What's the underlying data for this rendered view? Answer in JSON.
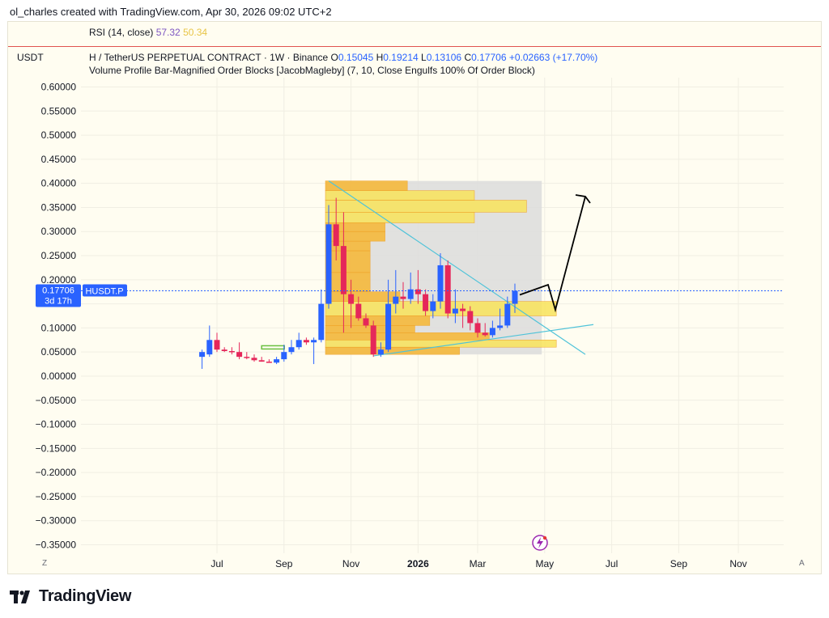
{
  "header": {
    "text": "ol_charles created with TradingView.com, Apr 30, 2026 09:02 UTC+2"
  },
  "rsi": {
    "label": "RSI (14, close)",
    "value1": "57.32",
    "value2": "50.34",
    "color1": "#7e57c2",
    "color2": "#e8c547"
  },
  "legend": {
    "currency": "USDT",
    "symbol": "H / TetherUS PERPETUAL CONTRACT · 1W · Binance",
    "o_label": "O",
    "o_value": "0.15045",
    "h_label": "H",
    "h_value": "0.19214",
    "l_label": "L",
    "l_value": "0.13106",
    "c_label": "C",
    "c_value": "0.17706",
    "change": "+0.02663 (+17.70%)",
    "indicator": "Volume Profile Bar-Magnified Order Blocks [JacobMagleby] (7, 10, Close Engulfs 100% Of Order Block)"
  },
  "price_tag": {
    "price": "0.17706",
    "countdown": "3d 17h",
    "symbol_label": "HUSDT.P",
    "color": "#2962ff"
  },
  "bottom": {
    "left_icon": "Z",
    "right_icon": "A"
  },
  "brand": {
    "name": "TradingView"
  },
  "colors": {
    "up": "#2962ff",
    "down": "#e5275a",
    "bg": "#fffdf1",
    "box": "#dcdcdc",
    "vp_orange": "#f7b733",
    "vp_yellow": "#f9e45b",
    "trendline": "#4fc3d9"
  },
  "chart_data": {
    "type": "candlestick",
    "y_ticks": [
      "0.60000",
      "0.55000",
      "0.50000",
      "0.45000",
      "0.40000",
      "0.35000",
      "0.30000",
      "0.25000",
      "0.20000",
      "0.15000",
      "0.10000",
      "0.05000",
      "0.00000",
      "−0.05000",
      "−0.10000",
      "−0.15000",
      "−0.20000",
      "−0.25000",
      "−0.30000",
      "−0.35000"
    ],
    "ylim": [
      -0.37,
      0.62
    ],
    "x_ticks": [
      {
        "label": "Jul",
        "week": 0
      },
      {
        "label": "Sep",
        "week": 9
      },
      {
        "label": "Nov",
        "week": 18
      },
      {
        "label": "2026",
        "week": 27,
        "bold": true
      },
      {
        "label": "Mar",
        "week": 35
      },
      {
        "label": "May",
        "week": 44
      },
      {
        "label": "Jul",
        "week": 53
      },
      {
        "label": "Sep",
        "week": 62
      },
      {
        "label": "Nov",
        "week": 70
      }
    ],
    "candles": [
      {
        "w": -2,
        "o": 0.04,
        "h": 0.055,
        "l": 0.015,
        "c": 0.05
      },
      {
        "w": -1,
        "o": 0.045,
        "h": 0.105,
        "l": 0.04,
        "c": 0.075
      },
      {
        "w": 0,
        "o": 0.075,
        "h": 0.09,
        "l": 0.05,
        "c": 0.055
      },
      {
        "w": 1,
        "o": 0.055,
        "h": 0.06,
        "l": 0.05,
        "c": 0.052
      },
      {
        "w": 2,
        "o": 0.052,
        "h": 0.06,
        "l": 0.045,
        "c": 0.05
      },
      {
        "w": 3,
        "o": 0.05,
        "h": 0.07,
        "l": 0.035,
        "c": 0.04
      },
      {
        "w": 4,
        "o": 0.04,
        "h": 0.05,
        "l": 0.035,
        "c": 0.038
      },
      {
        "w": 5,
        "o": 0.038,
        "h": 0.045,
        "l": 0.03,
        "c": 0.033
      },
      {
        "w": 6,
        "o": 0.033,
        "h": 0.04,
        "l": 0.03,
        "c": 0.03
      },
      {
        "w": 7,
        "o": 0.03,
        "h": 0.035,
        "l": 0.028,
        "c": 0.028
      },
      {
        "w": 8,
        "o": 0.028,
        "h": 0.04,
        "l": 0.025,
        "c": 0.035
      },
      {
        "w": 9,
        "o": 0.035,
        "h": 0.065,
        "l": 0.03,
        "c": 0.05
      },
      {
        "w": 10,
        "o": 0.05,
        "h": 0.075,
        "l": 0.045,
        "c": 0.06
      },
      {
        "w": 11,
        "o": 0.06,
        "h": 0.09,
        "l": 0.055,
        "c": 0.075
      },
      {
        "w": 12,
        "o": 0.075,
        "h": 0.08,
        "l": 0.065,
        "c": 0.07
      },
      {
        "w": 13,
        "o": 0.07,
        "h": 0.08,
        "l": 0.025,
        "c": 0.075
      },
      {
        "w": 14,
        "o": 0.075,
        "h": 0.18,
        "l": 0.07,
        "c": 0.15
      },
      {
        "w": 15,
        "o": 0.15,
        "h": 0.355,
        "l": 0.14,
        "c": 0.315
      },
      {
        "w": 16,
        "o": 0.315,
        "h": 0.37,
        "l": 0.24,
        "c": 0.27
      },
      {
        "w": 17,
        "o": 0.27,
        "h": 0.34,
        "l": 0.09,
        "c": 0.17
      },
      {
        "w": 18,
        "o": 0.17,
        "h": 0.2,
        "l": 0.1,
        "c": 0.15
      },
      {
        "w": 19,
        "o": 0.15,
        "h": 0.165,
        "l": 0.115,
        "c": 0.12
      },
      {
        "w": 20,
        "o": 0.12,
        "h": 0.13,
        "l": 0.1,
        "c": 0.105
      },
      {
        "w": 21,
        "o": 0.105,
        "h": 0.115,
        "l": 0.04,
        "c": 0.045
      },
      {
        "w": 22,
        "o": 0.045,
        "h": 0.07,
        "l": 0.04,
        "c": 0.055
      },
      {
        "w": 23,
        "o": 0.055,
        "h": 0.2,
        "l": 0.05,
        "c": 0.15
      },
      {
        "w": 24,
        "o": 0.15,
        "h": 0.22,
        "l": 0.13,
        "c": 0.165
      },
      {
        "w": 25,
        "o": 0.165,
        "h": 0.195,
        "l": 0.14,
        "c": 0.16
      },
      {
        "w": 26,
        "o": 0.16,
        "h": 0.215,
        "l": 0.15,
        "c": 0.18
      },
      {
        "w": 27,
        "o": 0.18,
        "h": 0.22,
        "l": 0.15,
        "c": 0.17
      },
      {
        "w": 28,
        "o": 0.17,
        "h": 0.18,
        "l": 0.125,
        "c": 0.135
      },
      {
        "w": 29,
        "o": 0.135,
        "h": 0.17,
        "l": 0.12,
        "c": 0.155
      },
      {
        "w": 30,
        "o": 0.155,
        "h": 0.255,
        "l": 0.14,
        "c": 0.23
      },
      {
        "w": 31,
        "o": 0.23,
        "h": 0.24,
        "l": 0.12,
        "c": 0.13
      },
      {
        "w": 32,
        "o": 0.13,
        "h": 0.18,
        "l": 0.11,
        "c": 0.14
      },
      {
        "w": 33,
        "o": 0.14,
        "h": 0.15,
        "l": 0.1,
        "c": 0.135
      },
      {
        "w": 34,
        "o": 0.135,
        "h": 0.145,
        "l": 0.095,
        "c": 0.11
      },
      {
        "w": 35,
        "o": 0.11,
        "h": 0.12,
        "l": 0.08,
        "c": 0.09
      },
      {
        "w": 36,
        "o": 0.09,
        "h": 0.11,
        "l": 0.082,
        "c": 0.085
      },
      {
        "w": 37,
        "o": 0.085,
        "h": 0.115,
        "l": 0.08,
        "c": 0.1
      },
      {
        "w": 38,
        "o": 0.1,
        "h": 0.14,
        "l": 0.095,
        "c": 0.105
      },
      {
        "w": 39,
        "o": 0.105,
        "h": 0.165,
        "l": 0.1,
        "c": 0.15
      },
      {
        "w": 40,
        "o": 0.15,
        "h": 0.192,
        "l": 0.131,
        "c": 0.177
      }
    ],
    "vp_box": {
      "w0": 15,
      "w1": 46,
      "y0": 0.045,
      "y1": 0.405
    },
    "vp_bars": [
      {
        "y0": 0.385,
        "y1": 0.405,
        "len": 11,
        "c": "o"
      },
      {
        "y0": 0.365,
        "y1": 0.385,
        "len": 20,
        "c": "y"
      },
      {
        "y0": 0.34,
        "y1": 0.365,
        "len": 27,
        "c": "y"
      },
      {
        "y0": 0.318,
        "y1": 0.34,
        "len": 20,
        "c": "y"
      },
      {
        "y0": 0.3,
        "y1": 0.318,
        "len": 8,
        "c": "o"
      },
      {
        "y0": 0.28,
        "y1": 0.3,
        "len": 8,
        "c": "o"
      },
      {
        "y0": 0.26,
        "y1": 0.28,
        "len": 6,
        "c": "o"
      },
      {
        "y0": 0.215,
        "y1": 0.26,
        "len": 6,
        "c": "o"
      },
      {
        "y0": 0.175,
        "y1": 0.215,
        "len": 6,
        "c": "o"
      },
      {
        "y0": 0.155,
        "y1": 0.175,
        "len": 10,
        "c": "o"
      },
      {
        "y0": 0.125,
        "y1": 0.155,
        "len": 31,
        "c": "y"
      },
      {
        "y0": 0.105,
        "y1": 0.125,
        "len": 14,
        "c": "o"
      },
      {
        "y0": 0.09,
        "y1": 0.105,
        "len": 12,
        "c": "o"
      },
      {
        "y0": 0.075,
        "y1": 0.09,
        "len": 22,
        "c": "o"
      },
      {
        "y0": 0.06,
        "y1": 0.075,
        "len": 31,
        "c": "y"
      },
      {
        "y0": 0.045,
        "y1": 0.06,
        "len": 18,
        "c": "o"
      }
    ],
    "price_line": 0.17706
  }
}
